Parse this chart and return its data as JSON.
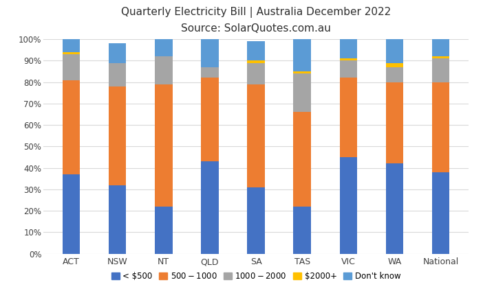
{
  "title_line1": "Quarterly Electricity Bill | Australia December 2022",
  "title_line2": "Source: SolarQuotes.com.au",
  "categories": [
    "ACT",
    "NSW",
    "NT",
    "QLD",
    "SA",
    "TAS",
    "VIC",
    "WA",
    "National"
  ],
  "series": {
    "< $500": [
      37,
      32,
      22,
      43,
      31,
      22,
      45,
      42,
      38
    ],
    "$500 - $1000": [
      44,
      46,
      57,
      39,
      48,
      44,
      37,
      38,
      42
    ],
    "$1000- $2000": [
      12,
      11,
      13,
      5,
      10,
      18,
      8,
      7,
      11
    ],
    "$2000+": [
      1,
      0,
      0,
      0,
      1,
      1,
      1,
      2,
      1
    ],
    "Don't know": [
      6,
      9,
      8,
      13,
      9,
      15,
      9,
      11,
      8
    ]
  },
  "colors": {
    "< $500": "#4472C4",
    "$500 - $1000": "#ED7D31",
    "$1000- $2000": "#A5A5A5",
    "$2000+": "#FFC000",
    "Don't know": "#5B9BD5"
  },
  "background_color": "#FFFFFF",
  "grid_color": "#D9D9D9",
  "ylim": [
    0,
    100
  ],
  "ytick_labels": [
    "0%",
    "10%",
    "20%",
    "30%",
    "40%",
    "50%",
    "60%",
    "70%",
    "80%",
    "90%",
    "100%"
  ]
}
